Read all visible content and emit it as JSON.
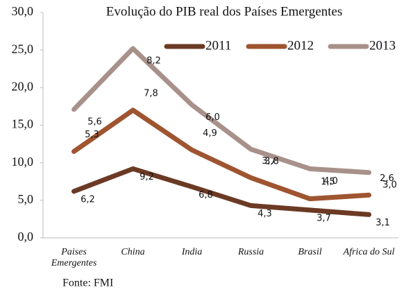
{
  "chart_data": {
    "type": "line",
    "stacked": true,
    "title": "Evolução do PIB real dos Países Emergentes",
    "source": "Fonte: FMI",
    "categories": [
      "Paises Emergentes",
      "China",
      "India",
      "Russia",
      "Brasil",
      "Africa do Sul"
    ],
    "series": [
      {
        "name": "2011",
        "color": "#6b3a24",
        "values": [
          6.2,
          9.2,
          6.8,
          4.3,
          3.7,
          3.1
        ],
        "value_labels": [
          "6,2",
          "9,2",
          "6,8",
          "4,3",
          "3,7",
          "3,1"
        ]
      },
      {
        "name": "2012",
        "color": "#9e5530",
        "values": [
          5.3,
          7.8,
          4.9,
          3.7,
          1.5,
          2.6
        ],
        "value_labels": [
          "5,3",
          "7,8",
          "4,9",
          "3,7",
          "1,5",
          "2,6"
        ]
      },
      {
        "name": "2013",
        "color": "#a8918a",
        "values": [
          5.6,
          8.2,
          6.0,
          3.8,
          4.0,
          3.0
        ],
        "value_labels": [
          "5,6",
          "8,2",
          "6,0",
          "3,8",
          "4,0",
          "3,0"
        ]
      }
    ],
    "ylim": [
      0,
      30
    ],
    "yticks": [
      {
        "value": 0,
        "label": "0,0"
      },
      {
        "value": 5,
        "label": "5,0"
      },
      {
        "value": 10,
        "label": "10,0"
      },
      {
        "value": 15,
        "label": "15,0"
      },
      {
        "value": 20,
        "label": "20,0"
      },
      {
        "value": 25,
        "label": "25,0"
      },
      {
        "value": 30,
        "label": "30,0"
      }
    ],
    "grid": false,
    "legend": "top-right"
  }
}
